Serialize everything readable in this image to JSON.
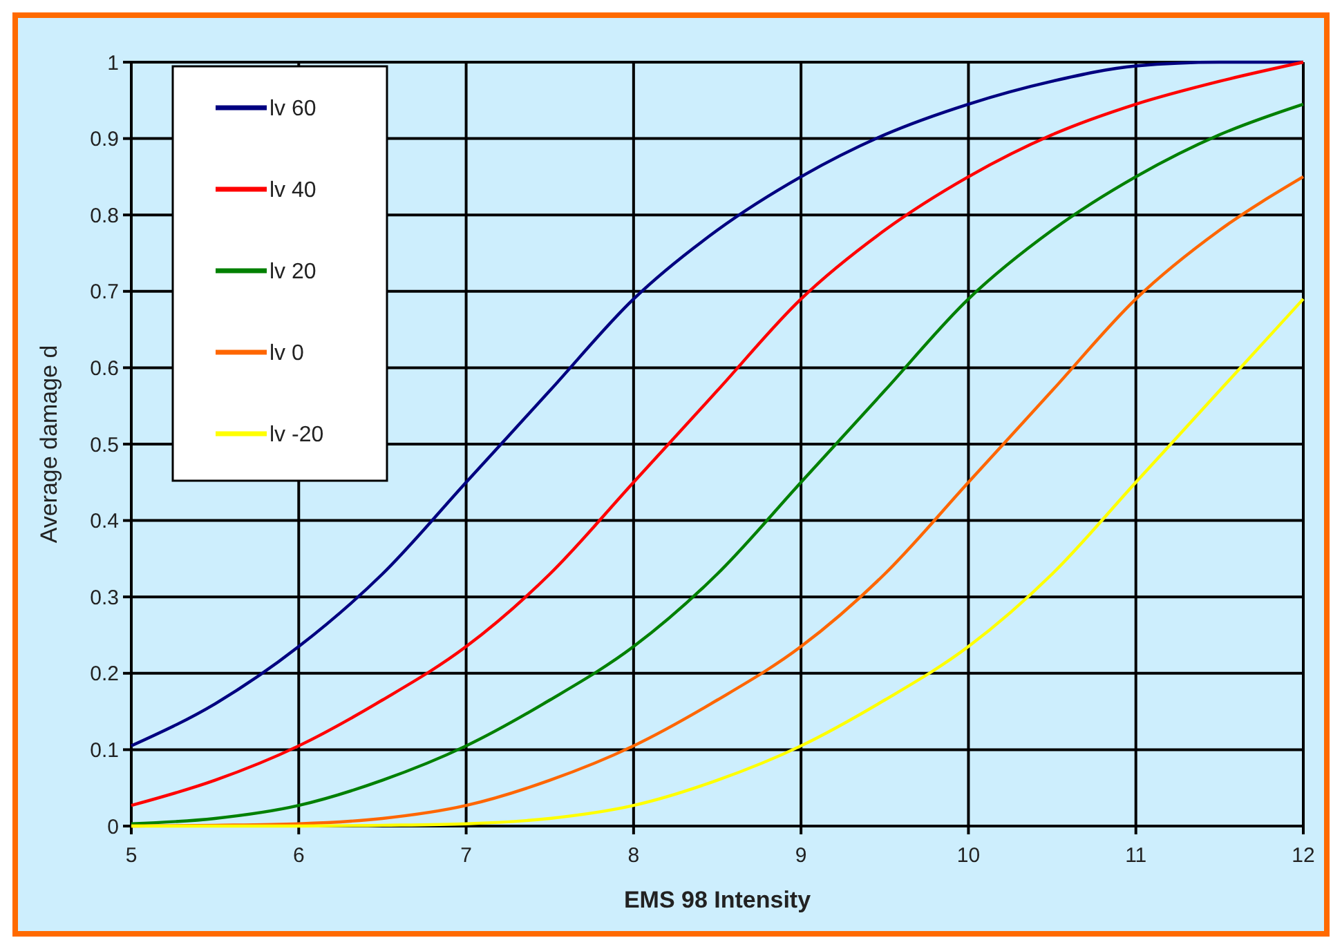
{
  "chart_data": {
    "type": "line",
    "xlabel": "EMS 98 Intensity",
    "ylabel": "Average damage d",
    "xlim": [
      5,
      12
    ],
    "xticks": [
      5,
      6,
      7,
      8,
      9,
      10,
      11,
      12
    ],
    "ylim": [
      0,
      1
    ],
    "yticks": [
      0,
      0.1,
      0.2,
      0.3,
      0.4,
      0.5,
      0.6,
      0.7,
      0.8,
      0.9,
      1
    ],
    "grid": true,
    "legend": "top left",
    "marker": "none",
    "line_style": "solid",
    "x": [
      5,
      5.5,
      6,
      6.5,
      7,
      7.5,
      8,
      8.5,
      9,
      9.5,
      10,
      10.5,
      11,
      11.5,
      12
    ],
    "series": [
      {
        "name": "lv 60",
        "color": "#000080",
        "values": [
          0.105,
          0.16,
          0.235,
          0.33,
          0.45,
          0.57,
          0.69,
          0.78,
          0.85,
          0.905,
          0.945,
          0.975,
          0.995,
          1,
          1
        ]
      },
      {
        "name": "lv 40",
        "color": "#ff0000",
        "values": [
          0.027,
          0.06,
          0.105,
          0.165,
          0.235,
          0.33,
          0.45,
          0.57,
          0.69,
          0.78,
          0.85,
          0.905,
          0.945,
          0.975,
          1
        ]
      },
      {
        "name": "lv 20",
        "color": "#008000",
        "values": [
          0.003,
          0.01,
          0.027,
          0.06,
          0.105,
          0.165,
          0.235,
          0.33,
          0.45,
          0.57,
          0.69,
          0.78,
          0.85,
          0.905,
          0.945
        ]
      },
      {
        "name": "lv 0",
        "color": "#ff6600",
        "values": [
          0,
          0.001,
          0.003,
          0.01,
          0.027,
          0.06,
          0.105,
          0.165,
          0.235,
          0.33,
          0.45,
          0.57,
          0.69,
          0.78,
          0.85
        ]
      },
      {
        "name": "lv -20",
        "color": "#ffff00",
        "values": [
          0,
          0,
          0,
          0.001,
          0.003,
          0.01,
          0.027,
          0.06,
          0.105,
          0.165,
          0.235,
          0.33,
          0.45,
          0.57,
          0.69
        ]
      }
    ]
  }
}
